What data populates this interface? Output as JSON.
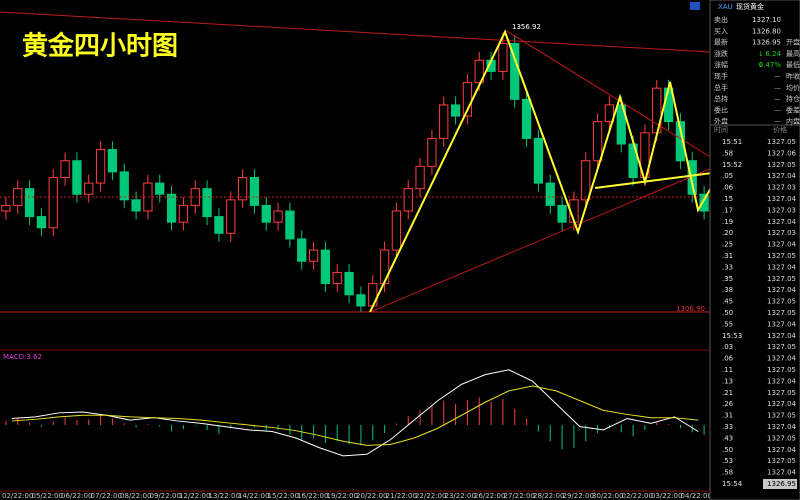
{
  "chart": {
    "title": "黄金四小时图",
    "high_label": "1356.92",
    "low_label": "1306.90",
    "ylim": [
      1301,
      1361
    ],
    "candles": [
      [
        1325,
        1327.5,
        1323.5,
        1326
      ],
      [
        1326,
        1330.5,
        1324.5,
        1329
      ],
      [
        1329,
        1330.5,
        1322.5,
        1324
      ],
      [
        1324,
        1325.5,
        1320.5,
        1322
      ],
      [
        1322,
        1332.5,
        1320.5,
        1331
      ],
      [
        1331,
        1335.5,
        1329.5,
        1334
      ],
      [
        1334,
        1335.5,
        1326.5,
        1328
      ],
      [
        1328,
        1331.5,
        1326.5,
        1330
      ],
      [
        1330,
        1337.5,
        1328.5,
        1336
      ],
      [
        1336,
        1337.5,
        1330.5,
        1332
      ],
      [
        1332,
        1333.5,
        1325.5,
        1327
      ],
      [
        1327,
        1328.5,
        1323.5,
        1325
      ],
      [
        1325,
        1331.5,
        1323.5,
        1330
      ],
      [
        1330,
        1331.5,
        1326.5,
        1328
      ],
      [
        1328,
        1329.5,
        1321.5,
        1323
      ],
      [
        1323,
        1327.5,
        1321.5,
        1326
      ],
      [
        1326,
        1330.5,
        1324.5,
        1329
      ],
      [
        1329,
        1330.5,
        1322.5,
        1324
      ],
      [
        1324,
        1325.5,
        1319.5,
        1321
      ],
      [
        1321,
        1328.5,
        1319.5,
        1327
      ],
      [
        1327,
        1332.5,
        1325.5,
        1331
      ],
      [
        1331,
        1332.5,
        1324.5,
        1326
      ],
      [
        1326,
        1327.5,
        1321.5,
        1323
      ],
      [
        1323,
        1326.5,
        1321.5,
        1325
      ],
      [
        1325,
        1326.5,
        1318.5,
        1320
      ],
      [
        1320,
        1321.5,
        1314.5,
        1316
      ],
      [
        1316,
        1319.5,
        1314.5,
        1318
      ],
      [
        1318,
        1319.5,
        1310.5,
        1312
      ],
      [
        1312,
        1315.5,
        1310.5,
        1314
      ],
      [
        1314,
        1315.5,
        1308.5,
        1310
      ],
      [
        1310,
        1311.5,
        1306.9,
        1308
      ],
      [
        1308,
        1313.5,
        1307.5,
        1312
      ],
      [
        1312,
        1319.5,
        1310.5,
        1318
      ],
      [
        1318,
        1326.5,
        1316.5,
        1325
      ],
      [
        1325,
        1330.5,
        1323.5,
        1329
      ],
      [
        1329,
        1334.5,
        1327.5,
        1333
      ],
      [
        1333,
        1339.5,
        1331.5,
        1338
      ],
      [
        1338,
        1345.5,
        1336.5,
        1344
      ],
      [
        1344,
        1345.5,
        1340.5,
        1342
      ],
      [
        1342,
        1349.5,
        1340.5,
        1348
      ],
      [
        1348,
        1353.5,
        1346.5,
        1352
      ],
      [
        1352,
        1353.5,
        1348.5,
        1350
      ],
      [
        1350,
        1356.92,
        1348.5,
        1355
      ],
      [
        1355,
        1356.5,
        1343.5,
        1345
      ],
      [
        1345,
        1346.5,
        1336.5,
        1338
      ],
      [
        1338,
        1339.5,
        1328.5,
        1330
      ],
      [
        1330,
        1331.5,
        1324.5,
        1326
      ],
      [
        1326,
        1327.5,
        1321.5,
        1323
      ],
      [
        1323,
        1328.5,
        1321.5,
        1327
      ],
      [
        1327,
        1335.5,
        1325.5,
        1334
      ],
      [
        1334,
        1342.5,
        1332.5,
        1341
      ],
      [
        1341,
        1345.5,
        1339.5,
        1344
      ],
      [
        1344,
        1345.5,
        1335.5,
        1337
      ],
      [
        1337,
        1338.5,
        1329.5,
        1331
      ],
      [
        1331,
        1340.5,
        1329.5,
        1339
      ],
      [
        1339,
        1348.5,
        1337.5,
        1347
      ],
      [
        1347,
        1348.5,
        1339.5,
        1341
      ],
      [
        1341,
        1342.5,
        1332.5,
        1334
      ],
      [
        1334,
        1335.5,
        1326.5,
        1328
      ],
      [
        1328,
        1329.5,
        1323.5,
        1325
      ]
    ],
    "macd": {
      "label": "MACD:3.62",
      "ylim": [
        -8,
        8
      ],
      "hist": [
        0.5,
        0.8,
        0.3,
        -0.2,
        0.4,
        0.9,
        0.6,
        0.7,
        1.2,
        0.8,
        0.2,
        -0.3,
        0.1,
        -0.2,
        -0.8,
        -0.5,
        -0.1,
        -0.6,
        -1.1,
        -0.4,
        0.2,
        -0.3,
        -0.7,
        -0.6,
        -1.2,
        -1.8,
        -1.6,
        -2.2,
        -2.0,
        -2.4,
        -2.5,
        -1.9,
        -1.0,
        0.2,
        1.1,
        1.8,
        2.4,
        3.0,
        2.6,
        3.1,
        3.4,
        2.9,
        3.2,
        2.0,
        0.8,
        -0.8,
        -2.0,
        -3.0,
        -2.8,
        -2.0,
        -1.0,
        -0.4,
        -0.9,
        -1.4,
        -0.6,
        0.3,
        0.1,
        -0.4,
        -0.9,
        -1.2
      ],
      "dif": [
        0.8,
        1.0,
        1.5,
        1.6,
        1.2,
        0.6,
        0.9,
        0.5,
        0.2,
        -0.2,
        -0.6,
        -0.8,
        -1.6,
        -2.8,
        -3.8,
        -3.6,
        -1.8,
        0.6,
        3.0,
        5.0,
        6.2,
        6.8,
        5.4,
        2.6,
        -0.2,
        -0.6,
        0.8,
        0.2,
        1.0,
        -0.8
      ],
      "dea": [
        0.5,
        0.7,
        1.0,
        1.2,
        1.2,
        1.0,
        0.9,
        0.8,
        0.6,
        0.3,
        0.0,
        -0.3,
        -0.7,
        -1.3,
        -2.0,
        -2.5,
        -2.4,
        -1.6,
        -0.4,
        1.2,
        2.8,
        4.2,
        4.8,
        4.2,
        3.0,
        1.8,
        1.3,
        0.9,
        0.9,
        0.6
      ]
    },
    "dates": [
      "02/22:00",
      "05/22:00",
      "06/22:00",
      "07/22:00",
      "08/22:00",
      "09/22:00",
      "12/22:00",
      "13/22:00",
      "14/22:00",
      "15/22:00",
      "16/22:00",
      "19/22:00",
      "20/22:00",
      "21/22:00",
      "22/22:00",
      "23/22:00",
      "26/22:00",
      "27/22:00",
      "28/22:00",
      "29/22:00",
      "30/22:00",
      "02/22:00",
      "03/22:00",
      "04/22:00"
    ]
  },
  "quote": {
    "symbol": "XAU",
    "name": "现货黄金",
    "rows": [
      [
        "卖出",
        "1327.10",
        ""
      ],
      [
        "买入",
        "1326.80",
        ""
      ],
      [
        "最新",
        "1326.95",
        "开盘"
      ],
      [
        "涨跌",
        "6.24",
        "最高"
      ],
      [
        "涨幅",
        "0.47%",
        "最低"
      ],
      [
        "现手",
        "—",
        "昨收"
      ],
      [
        "总手",
        "—",
        "均价"
      ],
      [
        "总持",
        "—",
        "持仓"
      ],
      [
        "委比",
        "—",
        "委差"
      ],
      [
        "外盘",
        "—",
        "内盘"
      ]
    ]
  },
  "ticks": {
    "header": [
      "时间",
      "价格"
    ],
    "rows": [
      [
        "15:51",
        "1327.05"
      ],
      [
        ".58",
        "1327.06"
      ],
      [
        "15:52",
        "1327.05"
      ],
      [
        ".05",
        "1327.04"
      ],
      [
        ".06",
        "1327.03"
      ],
      [
        ".15",
        "1327.04"
      ],
      [
        ".17",
        "1327.03"
      ],
      [
        ".19",
        "1327.04"
      ],
      [
        ".20",
        "1327.03"
      ],
      [
        ".25",
        "1327.04"
      ],
      [
        ".31",
        "1327.05"
      ],
      [
        ".33",
        "1327.04"
      ],
      [
        ".35",
        "1327.05"
      ],
      [
        ".38",
        "1327.04"
      ],
      [
        ".45",
        "1327.05"
      ],
      [
        ".50",
        "1327.05"
      ],
      [
        ".55",
        "1327.04"
      ],
      [
        "15:53",
        "1327.04"
      ],
      [
        ".03",
        "1327.05"
      ],
      [
        ".06",
        "1327.04"
      ],
      [
        ".11",
        "1327.05"
      ],
      [
        ".13",
        "1327.04"
      ],
      [
        ".21",
        "1327.05"
      ],
      [
        ".26",
        "1327.04"
      ],
      [
        ".31",
        "1327.05"
      ],
      [
        ".33",
        "1327.04"
      ],
      [
        ".43",
        "1327.05"
      ],
      [
        ".50",
        "1327.04"
      ],
      [
        ".53",
        "1327.05"
      ],
      [
        ".58",
        "1327.04"
      ],
      [
        "15:54",
        "1326.95"
      ]
    ]
  }
}
